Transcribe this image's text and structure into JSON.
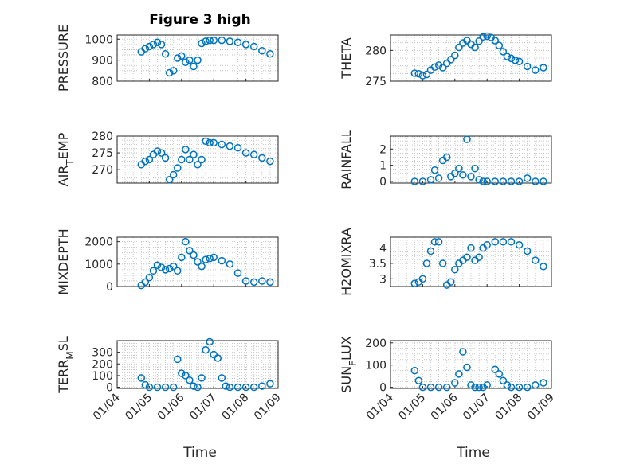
{
  "figure": {
    "title": "Figure 3 high",
    "marker_color": "#0072BD"
  },
  "chart_data": [
    {
      "type": "scatter",
      "ylabel": "PRESSURE",
      "title": "Figure 3 high",
      "yticks": [
        "800",
        "900",
        "1000"
      ],
      "ylim": [
        800,
        1020
      ],
      "xlim": [
        "01/04",
        "01/09"
      ],
      "grid": true,
      "x": [
        "01/04 18:00",
        "01/04 21:00",
        "01/05 00:00",
        "01/05 03:00",
        "01/05 06:00",
        "01/05 09:00",
        "01/05 12:00",
        "01/05 15:00",
        "01/05 18:00",
        "01/05 21:00",
        "01/06 00:00",
        "01/06 03:00",
        "01/06 06:00",
        "01/06 09:00",
        "01/06 12:00",
        "01/06 15:00",
        "01/06 18:00",
        "01/06 21:00",
        "01/07 00:00",
        "01/07 06:00",
        "01/07 12:00",
        "01/07 18:00",
        "01/08 00:00",
        "01/08 06:00",
        "01/08 12:00",
        "01/08 18:00"
      ],
      "y": [
        940,
        955,
        965,
        975,
        985,
        975,
        930,
        840,
        850,
        910,
        920,
        890,
        900,
        870,
        900,
        980,
        990,
        995,
        995,
        995,
        990,
        985,
        975,
        965,
        945,
        930
      ]
    },
    {
      "type": "scatter",
      "ylabel": "THETA",
      "yticks": [
        "275",
        "280"
      ],
      "ylim": [
        275,
        282.5
      ],
      "xlim": [
        "01/04",
        "01/09"
      ],
      "grid": true,
      "x": [
        "01/04 18:00",
        "01/04 21:00",
        "01/05 00:00",
        "01/05 03:00",
        "01/05 06:00",
        "01/05 09:00",
        "01/05 12:00",
        "01/05 15:00",
        "01/05 18:00",
        "01/05 21:00",
        "01/06 00:00",
        "01/06 03:00",
        "01/06 06:00",
        "01/06 09:00",
        "01/06 12:00",
        "01/06 15:00",
        "01/06 18:00",
        "01/06 21:00",
        "01/07 00:00",
        "01/07 03:00",
        "01/07 06:00",
        "01/07 09:00",
        "01/07 12:00",
        "01/07 15:00",
        "01/07 18:00",
        "01/07 21:00",
        "01/08 00:00",
        "01/08 06:00",
        "01/08 12:00",
        "01/08 18:00"
      ],
      "y": [
        276.3,
        276.2,
        275.9,
        276.1,
        276.8,
        277.3,
        277.6,
        277.2,
        277.9,
        278.5,
        279.2,
        280.5,
        281.2,
        281.6,
        281.0,
        280.5,
        281.5,
        282.2,
        282.3,
        282.1,
        281.6,
        280.8,
        279.8,
        279.0,
        278.7,
        278.4,
        278.2,
        277.4,
        276.8,
        277.2
      ]
    },
    {
      "type": "scatter",
      "ylabel": "AIR_TEMP",
      "yticks": [
        "270",
        "275",
        "280"
      ],
      "ylim": [
        266,
        280
      ],
      "xlim": [
        "01/04",
        "01/09"
      ],
      "grid": true,
      "x": [
        "01/04 18:00",
        "01/04 21:00",
        "01/05 00:00",
        "01/05 03:00",
        "01/05 06:00",
        "01/05 09:00",
        "01/05 12:00",
        "01/05 15:00",
        "01/05 18:00",
        "01/05 21:00",
        "01/06 00:00",
        "01/06 03:00",
        "01/06 06:00",
        "01/06 09:00",
        "01/06 12:00",
        "01/06 15:00",
        "01/06 18:00",
        "01/06 21:00",
        "01/07 00:00",
        "01/07 06:00",
        "01/07 12:00",
        "01/07 18:00",
        "01/08 00:00",
        "01/08 06:00",
        "01/08 12:00",
        "01/08 18:00"
      ],
      "y": [
        271.5,
        272.5,
        273.0,
        274.5,
        275.5,
        275.0,
        273.5,
        267.0,
        268.5,
        270.5,
        273.0,
        276.0,
        273.0,
        274.5,
        271.5,
        273.0,
        278.5,
        278.0,
        278.0,
        277.5,
        277.0,
        276.5,
        275.0,
        274.5,
        273.5,
        272.5
      ]
    },
    {
      "type": "scatter",
      "ylabel": "RAINFALL",
      "yticks": [
        "0",
        "1",
        "2"
      ],
      "ylim": [
        -0.1,
        2.8
      ],
      "xlim": [
        "01/04",
        "01/09"
      ],
      "grid": true,
      "x": [
        "01/04 18:00",
        "01/05 00:00",
        "01/05 06:00",
        "01/05 09:00",
        "01/05 12:00",
        "01/05 15:00",
        "01/05 18:00",
        "01/05 21:00",
        "01/06 00:00",
        "01/06 03:00",
        "01/06 06:00",
        "01/06 09:00",
        "01/06 12:00",
        "01/06 15:00",
        "01/06 18:00",
        "01/06 21:00",
        "01/07 00:00",
        "01/07 06:00",
        "01/07 12:00",
        "01/07 18:00",
        "01/08 00:00",
        "01/08 06:00",
        "01/08 12:00",
        "01/08 18:00"
      ],
      "y": [
        0,
        0,
        0.1,
        0.7,
        0.2,
        1.3,
        1.5,
        0.3,
        0.5,
        0.8,
        0.4,
        2.6,
        0.3,
        0.8,
        0.1,
        0,
        0,
        0,
        0,
        0,
        0,
        0.2,
        0,
        0
      ]
    },
    {
      "type": "scatter",
      "ylabel": "MIXDEPTH",
      "yticks": [
        "0",
        "1000",
        "2000"
      ],
      "ylim": [
        0,
        2200
      ],
      "xlim": [
        "01/04",
        "01/09"
      ],
      "grid": true,
      "x": [
        "01/04 18:00",
        "01/04 21:00",
        "01/05 00:00",
        "01/05 03:00",
        "01/05 06:00",
        "01/05 09:00",
        "01/05 12:00",
        "01/05 15:00",
        "01/05 18:00",
        "01/05 21:00",
        "01/06 00:00",
        "01/06 03:00",
        "01/06 06:00",
        "01/06 09:00",
        "01/06 12:00",
        "01/06 15:00",
        "01/06 18:00",
        "01/06 21:00",
        "01/07 00:00",
        "01/07 06:00",
        "01/07 12:00",
        "01/07 18:00",
        "01/08 00:00",
        "01/08 06:00",
        "01/08 12:00",
        "01/08 18:00"
      ],
      "y": [
        50,
        200,
        400,
        700,
        950,
        850,
        750,
        800,
        900,
        700,
        1300,
        2000,
        1600,
        1400,
        1100,
        900,
        1200,
        1250,
        1300,
        1150,
        1000,
        600,
        250,
        200,
        250,
        200
      ]
    },
    {
      "type": "scatter",
      "ylabel": "H2OMIXRA",
      "yticks": [
        "3",
        "3.5",
        "4"
      ],
      "ylim": [
        2.75,
        4.35
      ],
      "xlim": [
        "01/04",
        "01/09"
      ],
      "grid": true,
      "x": [
        "01/04 18:00",
        "01/04 21:00",
        "01/05 00:00",
        "01/05 03:00",
        "01/05 06:00",
        "01/05 09:00",
        "01/05 12:00",
        "01/05 15:00",
        "01/05 18:00",
        "01/05 21:00",
        "01/06 00:00",
        "01/06 03:00",
        "01/06 06:00",
        "01/06 09:00",
        "01/06 12:00",
        "01/06 15:00",
        "01/06 18:00",
        "01/06 21:00",
        "01/07 00:00",
        "01/07 06:00",
        "01/07 12:00",
        "01/07 18:00",
        "01/08 00:00",
        "01/08 06:00",
        "01/08 12:00",
        "01/08 18:00"
      ],
      "y": [
        2.85,
        2.9,
        3.0,
        3.5,
        3.9,
        4.2,
        4.2,
        3.5,
        2.8,
        2.9,
        3.3,
        3.5,
        3.6,
        3.7,
        4.0,
        3.6,
        3.7,
        4.0,
        4.1,
        4.2,
        4.2,
        4.2,
        4.1,
        3.9,
        3.6,
        3.4
      ]
    },
    {
      "type": "scatter",
      "ylabel": "TERR_MSL",
      "yticks": [
        "0",
        "100",
        "200",
        "300"
      ],
      "ylim": [
        -10,
        400
      ],
      "xlim": [
        "01/04",
        "01/09"
      ],
      "grid": true,
      "x": [
        "01/04 18:00",
        "01/04 21:00",
        "01/05 00:00",
        "01/05 06:00",
        "01/05 12:00",
        "01/05 18:00",
        "01/05 21:00",
        "01/06 00:00",
        "01/06 03:00",
        "01/06 06:00",
        "01/06 09:00",
        "01/06 12:00",
        "01/06 15:00",
        "01/06 18:00",
        "01/06 21:00",
        "01/07 00:00",
        "01/07 03:00",
        "01/07 06:00",
        "01/07 09:00",
        "01/07 12:00",
        "01/07 18:00",
        "01/08 00:00",
        "01/08 06:00",
        "01/08 12:00",
        "01/08 18:00"
      ],
      "y": [
        80,
        20,
        0,
        0,
        0,
        0,
        240,
        120,
        100,
        60,
        10,
        0,
        80,
        320,
        390,
        280,
        250,
        80,
        10,
        0,
        0,
        0,
        0,
        10,
        30
      ]
    },
    {
      "type": "scatter",
      "ylabel": "SUN_FLUX",
      "yticks": [
        "0",
        "100",
        "200"
      ],
      "ylim": [
        -5,
        210
      ],
      "xlim": [
        "01/04",
        "01/09"
      ],
      "grid": true,
      "x": [
        "01/04 18:00",
        "01/04 21:00",
        "01/05 00:00",
        "01/05 06:00",
        "01/05 12:00",
        "01/05 18:00",
        "01/06 00:00",
        "01/06 03:00",
        "01/06 06:00",
        "01/06 09:00",
        "01/06 12:00",
        "01/06 15:00",
        "01/06 18:00",
        "01/06 21:00",
        "01/07 00:00",
        "01/07 06:00",
        "01/07 09:00",
        "01/07 12:00",
        "01/07 15:00",
        "01/07 18:00",
        "01/08 00:00",
        "01/08 06:00",
        "01/08 12:00",
        "01/08 18:00"
      ],
      "y": [
        75,
        30,
        0,
        0,
        0,
        0,
        20,
        60,
        160,
        90,
        10,
        0,
        0,
        0,
        10,
        80,
        60,
        30,
        10,
        0,
        0,
        0,
        10,
        20
      ]
    }
  ],
  "axes": {
    "xticks": [
      "01/04",
      "01/05",
      "01/06",
      "01/07",
      "01/08",
      "01/09"
    ],
    "xlabel": "Time"
  }
}
